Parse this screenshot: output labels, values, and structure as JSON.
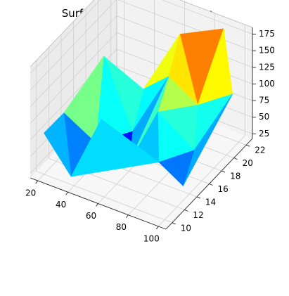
{
  "chart_data": {
    "type": "surface",
    "title": "Surface plot geeks for geeks",
    "colormap": "jet",
    "x_ticks": [
      "20",
      "40",
      "60",
      "80",
      "100"
    ],
    "y_ticks": [
      "10",
      "12",
      "14",
      "16",
      "18",
      "20",
      "22"
    ],
    "z_ticks": [
      "25",
      "50",
      "75",
      "100",
      "125",
      "150",
      "175"
    ],
    "xlim": [
      15,
      105
    ],
    "ylim": [
      9,
      23
    ],
    "zlim": [
      18,
      185
    ],
    "points": [
      {
        "x": 20,
        "y": 10,
        "z": 80
      },
      {
        "x": 38,
        "y": 10,
        "z": 30
      },
      {
        "x": 54,
        "y": 11,
        "z": 120
      },
      {
        "x": 88,
        "y": 12,
        "z": 75
      },
      {
        "x": 100,
        "y": 13,
        "z": 40
      },
      {
        "x": 25,
        "y": 12,
        "z": 95
      },
      {
        "x": 42,
        "y": 13,
        "z": 55
      },
      {
        "x": 60,
        "y": 14,
        "z": 30
      },
      {
        "x": 75,
        "y": 15,
        "z": 110
      },
      {
        "x": 95,
        "y": 16,
        "z": 60
      },
      {
        "x": 35,
        "y": 16,
        "z": 150
      },
      {
        "x": 50,
        "y": 17,
        "z": 40
      },
      {
        "x": 70,
        "y": 18,
        "z": 130
      },
      {
        "x": 85,
        "y": 19,
        "z": 90
      },
      {
        "x": 45,
        "y": 20,
        "z": 70
      },
      {
        "x": 65,
        "y": 21,
        "z": 160
      },
      {
        "x": 90,
        "y": 22,
        "z": 180
      },
      {
        "x": 100,
        "y": 21,
        "z": 100
      }
    ]
  }
}
